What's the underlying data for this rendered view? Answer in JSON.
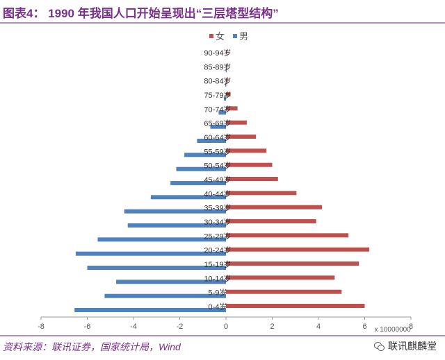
{
  "header": {
    "title": "图表4：  1990 年我国人口开始呈现出“三层塔型结构”"
  },
  "footer": {
    "source": "资料来源：联讯证券，国家统计局，Wind",
    "watermark": "联讯麒麟堂"
  },
  "icons": {
    "watermark_icon": "wechat-icon"
  },
  "colors": {
    "female": "#c0504d",
    "male": "#4f81bd",
    "accent": "#7a2f8b"
  },
  "chart_data": {
    "type": "bar",
    "orientation": "horizontal",
    "categories": [
      "0-4岁",
      "5-9岁",
      "10-14岁",
      "15-19岁",
      "20-24岁",
      "25-29岁",
      "30-34岁",
      "35-39岁",
      "40-44岁",
      "45-49岁",
      "50-54岁",
      "55-59岁",
      "60-64岁",
      "65-69岁",
      "70-74岁",
      "75-79岁",
      "80-84岁",
      "85-89岁",
      "90-94岁"
    ],
    "series": [
      {
        "name": "女",
        "color": "#c0504d",
        "values": [
          6.0,
          5.0,
          4.7,
          5.75,
          6.2,
          5.3,
          3.9,
          4.15,
          3.05,
          2.25,
          2.0,
          1.75,
          1.3,
          0.9,
          0.5,
          0.2,
          0.07,
          0.03,
          0.01
        ]
      },
      {
        "name": "男",
        "color": "#4f81bd",
        "values": [
          -6.55,
          -5.25,
          -4.75,
          -6.0,
          -6.5,
          -5.55,
          -4.25,
          -4.4,
          -3.25,
          -2.4,
          -2.15,
          -1.8,
          -1.25,
          -0.68,
          -0.32,
          -0.09,
          -0.03,
          -0.01,
          0
        ]
      }
    ],
    "x_ticks": [
      "-8",
      "-6",
      "-4",
      "-2",
      "0",
      "2",
      "4",
      "6",
      "8"
    ],
    "xlim": [
      -8,
      8
    ],
    "x_unit_label": "x 10000000",
    "legend_position": "top",
    "grid": false
  }
}
